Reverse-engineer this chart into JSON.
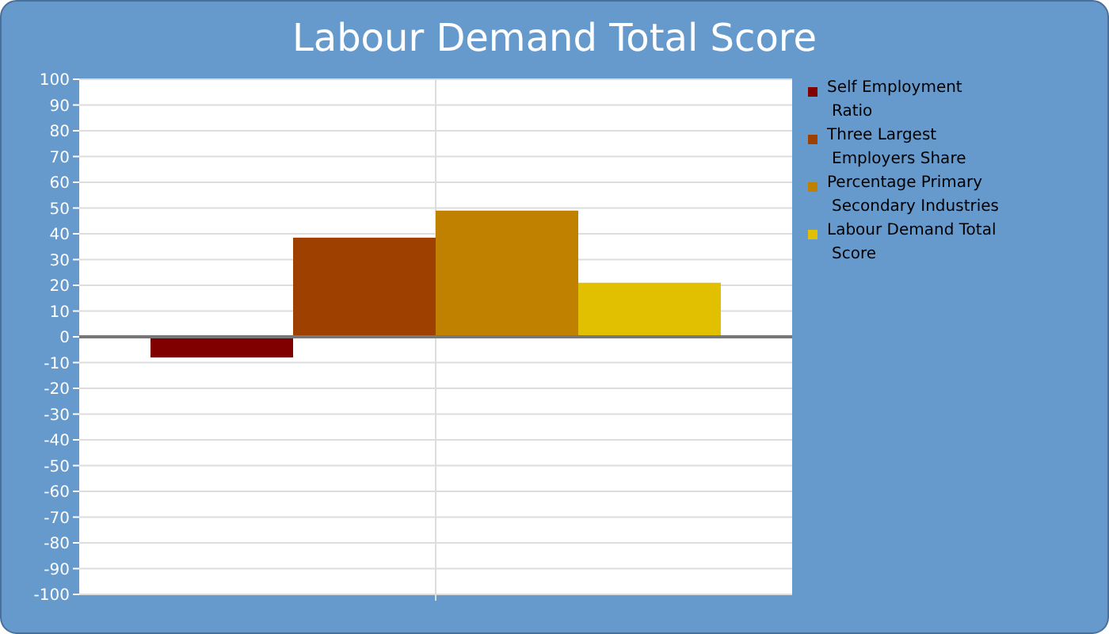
{
  "chart_data": {
    "type": "bar",
    "title": "Labour Demand Total Score",
    "categories": [
      null
    ],
    "series": [
      {
        "name": "Self Employment Ratio",
        "color": "#800000",
        "values": [
          -8
        ]
      },
      {
        "name": "Three Largest Employers Share",
        "color": "#9e4100",
        "values": [
          38.5
        ]
      },
      {
        "name": "Percentage Primary Secondary Industries",
        "color": "#c08000",
        "values": [
          49
        ]
      },
      {
        "name": "Labour Demand Total Score",
        "color": "#e0c000",
        "values": [
          21
        ]
      }
    ],
    "ylim": [
      -100,
      100
    ],
    "yticks": [
      -100,
      -90,
      -80,
      -70,
      -60,
      -50,
      -40,
      -30,
      -20,
      -10,
      0,
      10,
      20,
      30,
      40,
      50,
      60,
      70,
      80,
      90,
      100
    ],
    "grid": true,
    "legend": "right"
  }
}
